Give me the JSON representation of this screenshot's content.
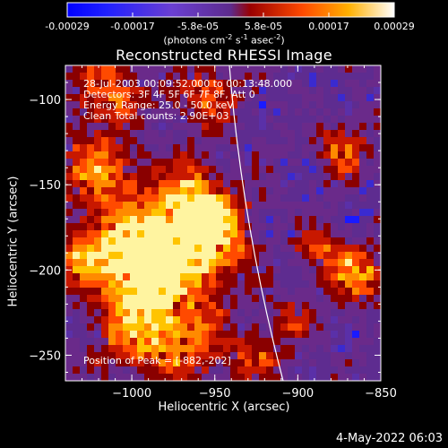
{
  "colorbar": {
    "ticks": [
      "-0.00029",
      "-0.00017",
      "-5.8e-05",
      "5.8e-05",
      "0.00017",
      "0.00029"
    ],
    "units_main": "(photons cm",
    "units_exp1": "-2",
    "units_mid": " s",
    "units_exp2": "-1",
    "units_mid2": " asec",
    "units_exp3": "-2",
    "units_end": ")"
  },
  "title": "Reconstructed RHESSI Image",
  "info": {
    "line1": "28-Jul-2003 00:09:52.000 to 00:13:48.000",
    "line2": "Detectors: 3F 4F 5F 6F 7F 8F, Att 0",
    "line3": "Energy Range: 25.0 - 50.0 keV",
    "line4": "Clean    Total counts: 2.90E+03"
  },
  "peak_label": "Position of Peak = [-882,-202]",
  "chart_data": {
    "type": "heatmap",
    "title": "Reconstructed RHESSI Image",
    "xlabel": "Heliocentric X (arcsec)",
    "ylabel": "Heliocentric Y (arcsec)",
    "xlim": [
      -1040,
      -850
    ],
    "ylim": [
      -265,
      -80
    ],
    "xticks": [
      -1000,
      -950,
      -900,
      -850
    ],
    "yticks": [
      -250,
      -200,
      -150,
      -100
    ],
    "xtick_labels": [
      "−1000",
      "−950",
      "−900",
      "−850"
    ],
    "ytick_labels": [
      "−250",
      "−200",
      "−150",
      "−100"
    ],
    "colorbar_range": [
      -0.00029,
      0.00029
    ],
    "peak": [
      -882,
      -202
    ],
    "limb_line_color": "#ffffff"
  },
  "timestamp": "4-May-2022 06:03",
  "colors": {
    "background": "#000000",
    "foreground": "#ffffff"
  }
}
